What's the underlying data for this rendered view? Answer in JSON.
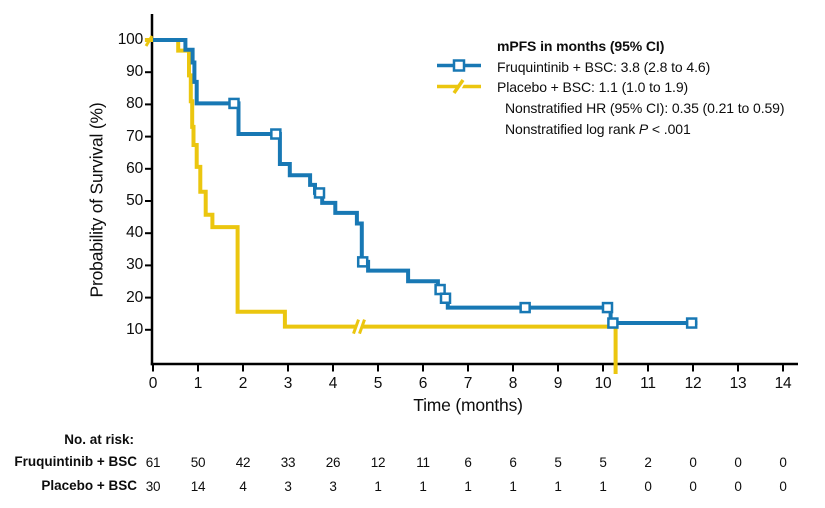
{
  "colors": {
    "fruquintinib": "#1878B4",
    "placebo": "#EBC60F",
    "axis": "#000000",
    "text": "#0d0d0d",
    "background": "#ffffff"
  },
  "axes": {
    "x": {
      "label": "Time (months)",
      "min": 0,
      "max": 14,
      "ticks": [
        0,
        1,
        2,
        3,
        4,
        5,
        6,
        7,
        8,
        9,
        10,
        11,
        12,
        13,
        14
      ]
    },
    "y": {
      "label": "Probability of Survival (%)",
      "min": 0,
      "max": 100,
      "ticks": [
        10,
        20,
        30,
        40,
        50,
        60,
        70,
        80,
        90,
        100
      ]
    }
  },
  "legend": {
    "title": "mPFS in months (95% CI)",
    "items": [
      {
        "series": "fruquintinib",
        "label": "Fruquintinib + BSC: 3.8 (2.8 to 4.6)"
      },
      {
        "series": "placebo",
        "label": "Placebo + BSC: 1.1 (1.0 to 1.9)"
      }
    ],
    "notes": [
      {
        "text": "Nonstratified HR (95% CI): 0.35 (0.21 to 0.59)"
      },
      {
        "prefix": "Nonstratified log rank ",
        "p": "P",
        "suffix": " < .001"
      }
    ]
  },
  "chart_data": {
    "type": "line",
    "subtype": "kaplan-meier-step",
    "title": "mPFS in months (95% CI)",
    "xlabel": "Time (months)",
    "ylabel": "Probability of Survival (%)",
    "xlim": [
      0,
      14
    ],
    "ylim": [
      0,
      100
    ],
    "grid": false,
    "legend_position": "top-right",
    "stats": {
      "hr": "0.35 (0.21 to 0.59)",
      "log_rank_p": "< .001"
    },
    "series": [
      {
        "name": "Fruquintinib + BSC",
        "median_mpfs": "3.8 (2.8 to 4.6)",
        "color": "#1878B4",
        "marker": "open-square",
        "steps": [
          [
            0,
            100
          ],
          [
            0.72,
            97
          ],
          [
            0.88,
            93
          ],
          [
            0.92,
            87
          ],
          [
            0.97,
            80.3
          ],
          [
            1.9,
            70.8
          ],
          [
            2.82,
            61.5
          ],
          [
            3.04,
            58
          ],
          [
            3.49,
            55
          ],
          [
            3.6,
            52.5
          ],
          [
            3.76,
            49.4
          ],
          [
            4.05,
            46.3
          ],
          [
            4.53,
            43
          ],
          [
            4.64,
            31.1
          ],
          [
            4.78,
            28.4
          ],
          [
            5.67,
            25.1
          ],
          [
            6.33,
            22.5
          ],
          [
            6.45,
            19.8
          ],
          [
            6.55,
            16.9
          ],
          [
            10.17,
            12.1
          ]
        ],
        "end": 12.1,
        "censors": [
          [
            1.8,
            80.3
          ],
          [
            2.73,
            70.8
          ],
          [
            3.7,
            52.5
          ],
          [
            4.66,
            31.1
          ],
          [
            6.38,
            22.5
          ],
          [
            6.5,
            19.8
          ],
          [
            8.27,
            16.9
          ],
          [
            10.1,
            16.9
          ],
          [
            10.22,
            12.1
          ],
          [
            11.97,
            12.1
          ]
        ]
      },
      {
        "name": "Placebo + BSC",
        "median_mpfs": "1.1 (1.0 to 1.9)",
        "color": "#EBC60F",
        "marker": "slash-tick",
        "steps": [
          [
            -0.18,
            100
          ],
          [
            0.56,
            96.7
          ],
          [
            0.8,
            89
          ],
          [
            0.84,
            81
          ],
          [
            0.87,
            73
          ],
          [
            0.9,
            67.4
          ],
          [
            0.97,
            60.6
          ],
          [
            1.05,
            52.9
          ],
          [
            1.17,
            45.7
          ],
          [
            1.32,
            41.9
          ],
          [
            1.88,
            15.6
          ],
          [
            2.93,
            11
          ]
        ],
        "drop_to_zero_at": 10.28,
        "break_mark": [
          4.5,
          11
        ]
      }
    ]
  },
  "risk_table": {
    "title": "No. at risk:",
    "months": [
      0,
      1,
      2,
      3,
      4,
      5,
      6,
      7,
      8,
      9,
      10,
      11,
      12,
      13,
      14
    ],
    "rows": [
      {
        "label": "Fruquintinib + BSC",
        "values": [
          61,
          50,
          42,
          33,
          26,
          12,
          11,
          6,
          6,
          5,
          5,
          2,
          0,
          0,
          0
        ]
      },
      {
        "label": "Placebo + BSC",
        "values": [
          30,
          14,
          4,
          3,
          3,
          1,
          1,
          1,
          1,
          1,
          1,
          0,
          0,
          0,
          0
        ]
      }
    ]
  }
}
